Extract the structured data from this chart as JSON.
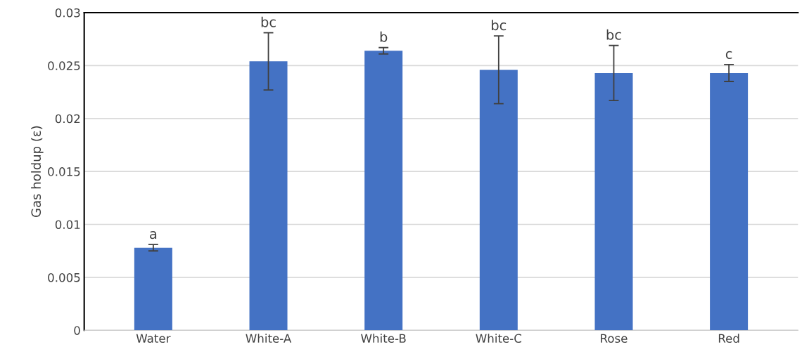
{
  "chart_data": {
    "type": "bar",
    "ylabel": "Gas holdup (ε)",
    "categories": [
      "Water",
      "White-A",
      "White-B",
      "White-C",
      "Rose",
      "Red"
    ],
    "values": [
      0.0078,
      0.0254,
      0.0264,
      0.0246,
      0.0243,
      0.0243
    ],
    "errors": [
      0.0003,
      0.0027,
      0.0003,
      0.0032,
      0.0026,
      0.0008
    ],
    "color": "#4472c4",
    "ylim": [
      0,
      0.03
    ],
    "yticks": [
      0,
      0.005,
      0.01,
      0.015,
      0.02,
      0.025,
      0.03
    ],
    "grid": "y",
    "annotations": [
      {
        "text": "a",
        "x": "Water",
        "y": 0.0081
      },
      {
        "text": "bc",
        "x": "White-A",
        "y": 0.0281
      },
      {
        "text": "b",
        "x": "White-B",
        "y": 0.0267
      },
      {
        "text": "bc",
        "x": "White-C",
        "y": 0.0278
      },
      {
        "text": "bc",
        "x": "Rose",
        "y": 0.0269
      },
      {
        "text": "c",
        "x": "Red",
        "y": 0.0251
      }
    ]
  }
}
